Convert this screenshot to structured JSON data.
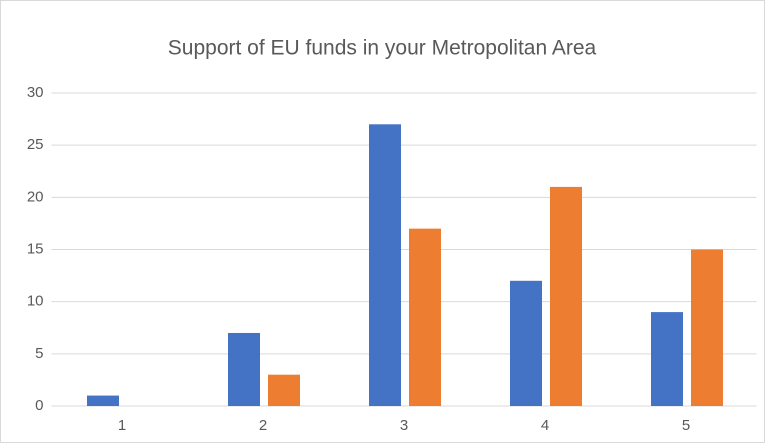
{
  "chart_data": {
    "type": "bar",
    "title": "Support of EU funds in your Metropolitan Area",
    "categories": [
      "1",
      "2",
      "3",
      "4",
      "5"
    ],
    "series": [
      {
        "color": "#4472c4",
        "values": [
          1,
          7,
          27,
          12,
          9
        ]
      },
      {
        "color": "#ed7d31",
        "values": [
          0,
          3,
          17,
          21,
          15
        ]
      }
    ],
    "ylim": [
      0,
      30
    ],
    "yticks": [
      0,
      5,
      10,
      15,
      20,
      25,
      30
    ],
    "grid": true
  }
}
